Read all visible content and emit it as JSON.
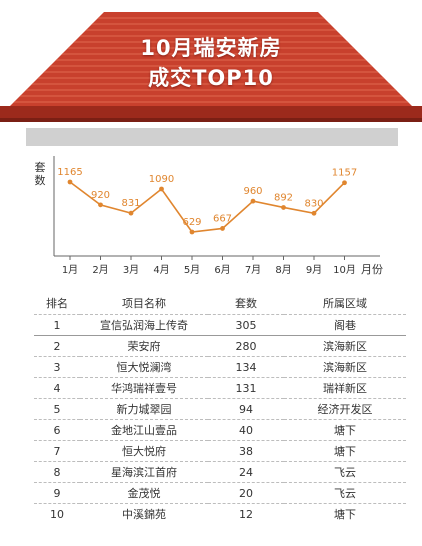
{
  "header": {
    "title_line1": "10月瑞安新房",
    "title_line2": "成交TOP10"
  },
  "colors": {
    "roof_red": "#c8402d",
    "roof_stripe": "#e0694f",
    "roof_eave": "#9c2a1c",
    "line_orange": "#e0862f",
    "wall_gray": "#d0d0d0"
  },
  "chart_data": {
    "type": "line",
    "title": "",
    "ylabel": "套数",
    "xlabel": "月份",
    "categories": [
      "1月",
      "2月",
      "3月",
      "4月",
      "5月",
      "6月",
      "7月",
      "8月",
      "9月",
      "10月"
    ],
    "values": [
      1165,
      920,
      831,
      1090,
      629,
      667,
      960,
      892,
      830,
      1157
    ],
    "grid": false,
    "legend": "none"
  },
  "table": {
    "headers": [
      "排名",
      "项目名称",
      "套数",
      "所属区域"
    ],
    "rows": [
      [
        "1",
        "宣信弘润海上传奇",
        "305",
        "阁巷"
      ],
      [
        "2",
        "荣安府",
        "280",
        "滨海新区"
      ],
      [
        "3",
        "恒大悦澜湾",
        "134",
        "滨海新区"
      ],
      [
        "4",
        "华鸿瑞祥壹号",
        "131",
        "瑞祥新区"
      ],
      [
        "5",
        "新力城翠园",
        "94",
        "经济开发区"
      ],
      [
        "6",
        "金地江山壹品",
        "40",
        "塘下"
      ],
      [
        "7",
        "恒大悦府",
        "38",
        "塘下"
      ],
      [
        "8",
        "星海滨江首府",
        "24",
        "飞云"
      ],
      [
        "9",
        "金茂悦",
        "20",
        "飞云"
      ],
      [
        "10",
        "中溪錦苑",
        "12",
        "塘下"
      ]
    ]
  }
}
